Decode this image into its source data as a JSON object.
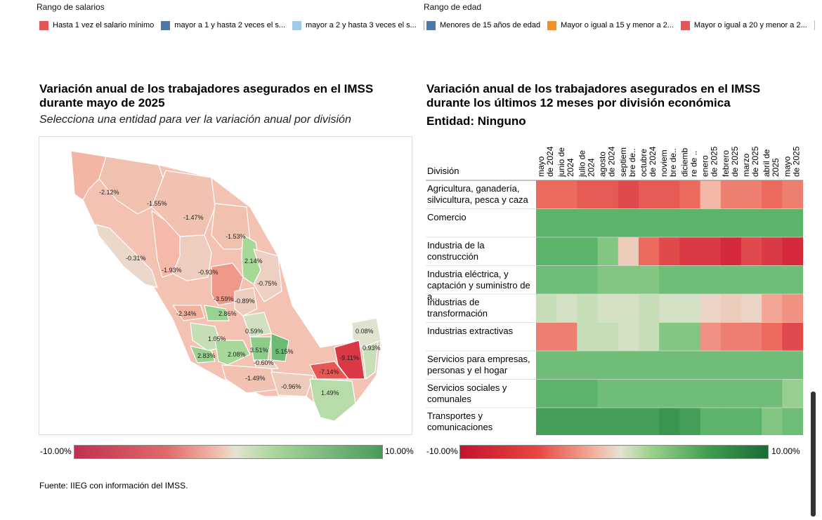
{
  "legend_salary": {
    "title": "Rango de salarios",
    "items": [
      {
        "label": "Hasta 1 vez el salario mínimo",
        "color": "#e15759"
      },
      {
        "label": "mayor a 1 y hasta 2 veces el s...",
        "color": "#4e79a7"
      },
      {
        "label": "mayor a 2 y hasta 3 veces el s...",
        "color": "#a0cbe8"
      }
    ]
  },
  "legend_age": {
    "title": "Rango de edad",
    "items": [
      {
        "label": "Menores de 15 años de edad",
        "color": "#4e79a7"
      },
      {
        "label": "Mayor o igual a 15 y menor a 2...",
        "color": "#f28e2b"
      },
      {
        "label": "Mayor o igual a 20 y menor a 2...",
        "color": "#e15759"
      }
    ]
  },
  "map": {
    "title": "Variación anual de los trabajadores asegurados en el IMSS durante mayo de 2025",
    "subtitle": "Selecciona una entidad para ver la variación anual por división",
    "scale_min": "-10.00%",
    "scale_max": "10.00%"
  },
  "heatmap": {
    "title": "Variación anual de los trabajadores asegurados en el IMSS durante los últimos 12 meses por división económica",
    "entity_line": "Entidad: Ninguno",
    "division_header": "División",
    "scale_min": "-10.00%",
    "scale_max": "10.00%"
  },
  "source": "Fuente: IIEG con información del IMSS.",
  "chart_data": [
    {
      "type": "map",
      "title": "Variación anual de los trabajadores asegurados en el IMSS durante mayo de 2025",
      "value_unit": "%",
      "color_range": [
        -10,
        10
      ],
      "labels": [
        {
          "value": "-2.12%",
          "v": -2.12
        },
        {
          "value": "-1.55%",
          "v": -1.55
        },
        {
          "value": "-1.47%",
          "v": -1.47
        },
        {
          "value": "-1.53%",
          "v": -1.53
        },
        {
          "value": "-0.31%",
          "v": -0.31
        },
        {
          "value": "2.14%",
          "v": 2.14
        },
        {
          "value": "-1.93%",
          "v": -1.93
        },
        {
          "value": "-0.93%",
          "v": -0.93
        },
        {
          "value": "-0.75%",
          "v": -0.75
        },
        {
          "value": "-3.59%",
          "v": -3.59
        },
        {
          "value": "-0.89%",
          "v": -0.89
        },
        {
          "value": "-2.34%",
          "v": -2.34
        },
        {
          "value": "2.86%",
          "v": 2.86
        },
        {
          "value": "0.59%",
          "v": 0.59
        },
        {
          "value": "1.05%",
          "v": 1.05
        },
        {
          "value": "2.83%",
          "v": 2.83
        },
        {
          "value": "2.08%",
          "v": 2.08
        },
        {
          "value": "3.51%",
          "v": 3.51
        },
        {
          "value": "5.15%",
          "v": 5.15
        },
        {
          "value": "-0.60%",
          "v": -0.6
        },
        {
          "value": "0.08%",
          "v": 0.08
        },
        {
          "value": "-9.11%",
          "v": -9.11
        },
        {
          "value": "0.93%",
          "v": 0.93
        },
        {
          "value": "-7.14%",
          "v": -7.14
        },
        {
          "value": "-1.49%",
          "v": -1.49
        },
        {
          "value": "-0.96%",
          "v": -0.96
        },
        {
          "value": "1.49%",
          "v": 1.49
        }
      ]
    },
    {
      "type": "heatmap",
      "title": "Variación anual de los trabajadores asegurados en el IMSS durante los últimos 12 meses por división económica",
      "color_range": [
        -10,
        10
      ],
      "columns": [
        [
          "mayo",
          "de 2024"
        ],
        [
          "junio de",
          "2024"
        ],
        [
          "julio de",
          "2024"
        ],
        [
          "agosto",
          "de 2024"
        ],
        [
          "septiem",
          "bre de.."
        ],
        [
          "octubre",
          "de 2024"
        ],
        [
          "noviem",
          "bre de.."
        ],
        [
          "diciemb",
          "re de .."
        ],
        [
          "enero",
          "de 2025"
        ],
        [
          "febrero",
          "de 2025"
        ],
        [
          "marzo",
          "de 2025"
        ],
        [
          "abril de",
          "2025"
        ],
        [
          "mayo",
          "de 2025"
        ]
      ],
      "rows": [
        {
          "label": "Agricultura, ganadería, silvicultura, pesca y caza",
          "values": [
            -6,
            -6,
            -7,
            -7,
            -8,
            -7,
            -7,
            -6,
            -2,
            -5,
            -5,
            -6,
            -5
          ]
        },
        {
          "label": "Comercio",
          "values": [
            6,
            6,
            6,
            6,
            6,
            6,
            6,
            6,
            6,
            6,
            6,
            6,
            6
          ]
        },
        {
          "label": "Industria de la construcción",
          "values": [
            6,
            6,
            6,
            4,
            -1,
            -6,
            -8,
            -9,
            -9,
            -10,
            -8,
            -9,
            -10
          ]
        },
        {
          "label": "Industria eléctrica, y captación y suministro de a..",
          "values": [
            5,
            5,
            5,
            4,
            4,
            4,
            5,
            5,
            5,
            5,
            5,
            5,
            5
          ]
        },
        {
          "label": "Industrias de transformación",
          "values": [
            1,
            0.5,
            1,
            0.5,
            0.5,
            1,
            0.5,
            0.5,
            -0.5,
            -1,
            -0.5,
            -3,
            -4
          ]
        },
        {
          "label": "Industrias extractivas",
          "values": [
            -5,
            -5,
            1,
            1,
            0.5,
            1,
            4,
            4,
            -4,
            -5,
            -5,
            -6,
            -8
          ]
        },
        {
          "label": "Servicios para empresas, personas y el hogar",
          "values": [
            5,
            5,
            5,
            5,
            5,
            5,
            5,
            5,
            5,
            5,
            5,
            5,
            5
          ]
        },
        {
          "label": "Servicios sociales y comunales",
          "values": [
            6,
            6,
            6,
            5,
            5,
            5,
            5,
            5,
            5,
            5,
            5,
            5,
            3
          ]
        },
        {
          "label": "Transportes y comunicaciones",
          "values": [
            8,
            8,
            8,
            8,
            8,
            8,
            9,
            8,
            6,
            6,
            6,
            4,
            5
          ]
        }
      ]
    }
  ]
}
